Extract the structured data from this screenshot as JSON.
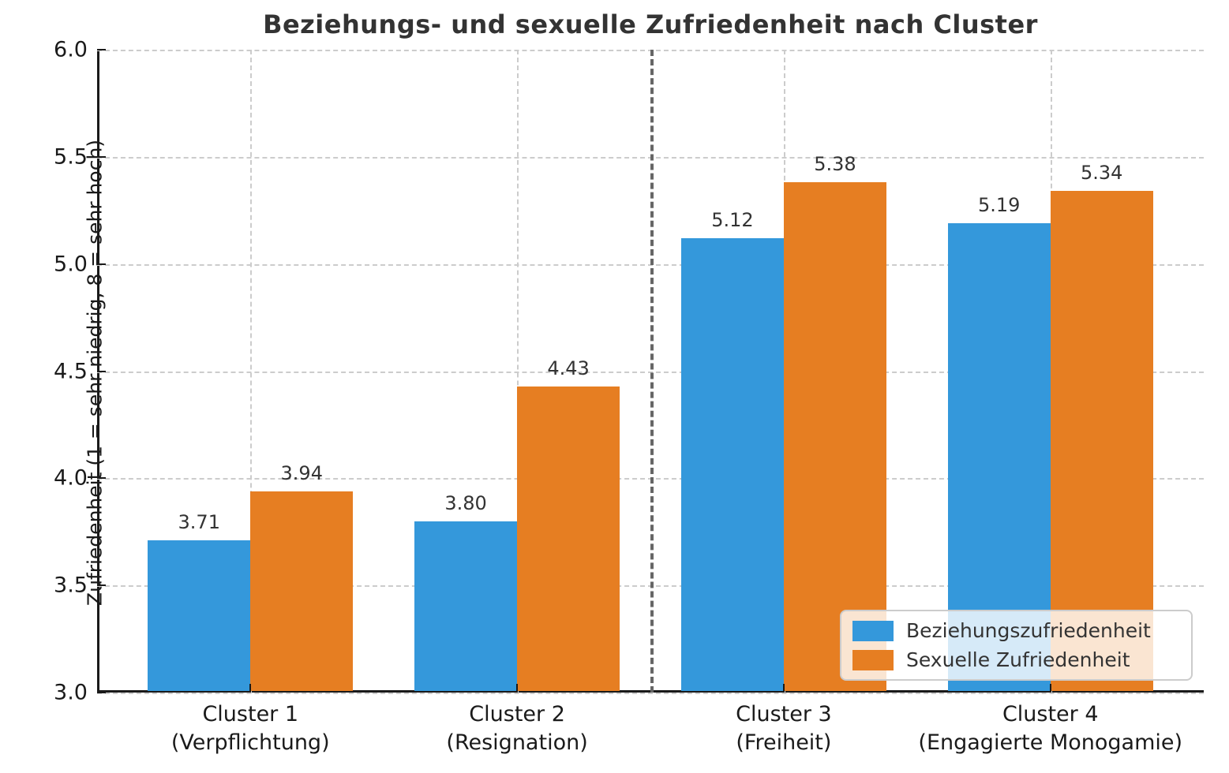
{
  "chart_data": {
    "type": "bar",
    "title": "Beziehungs- und sexuelle Zufriedenheit nach Cluster",
    "ylabel": "Zufriedenheit (1 = sehr niedrig, 8 = sehr hoch)",
    "xlabel": "",
    "categories": [
      [
        "Cluster 1",
        "(Verpflichtung)"
      ],
      [
        "Cluster 2",
        "(Resignation)"
      ],
      [
        "Cluster 3",
        "(Freiheit)"
      ],
      [
        "Cluster 4",
        "(Engagierte Monogamie)"
      ]
    ],
    "series": [
      {
        "name": "Beziehungszufriedenheit",
        "color": "#3498db",
        "values": [
          3.71,
          3.8,
          5.12,
          5.19
        ]
      },
      {
        "name": "Sexuelle Zufriedenheit",
        "color": "#e67e22",
        "values": [
          3.94,
          4.43,
          5.38,
          5.34
        ]
      }
    ],
    "value_label_decimals": 2,
    "ylim": [
      3.0,
      6.0
    ],
    "yticks": [
      3.0,
      3.5,
      4.0,
      4.5,
      5.0,
      5.5,
      6.0
    ],
    "ytick_decimals": 1,
    "grid": true,
    "legend_position": "lower right",
    "divider_between_categories": [
      1,
      2
    ],
    "colors": {
      "grid": "#cccccc",
      "divider": "#666666",
      "axis": "#1a1a1a",
      "text": "#333333",
      "background": "#ffffff"
    }
  }
}
